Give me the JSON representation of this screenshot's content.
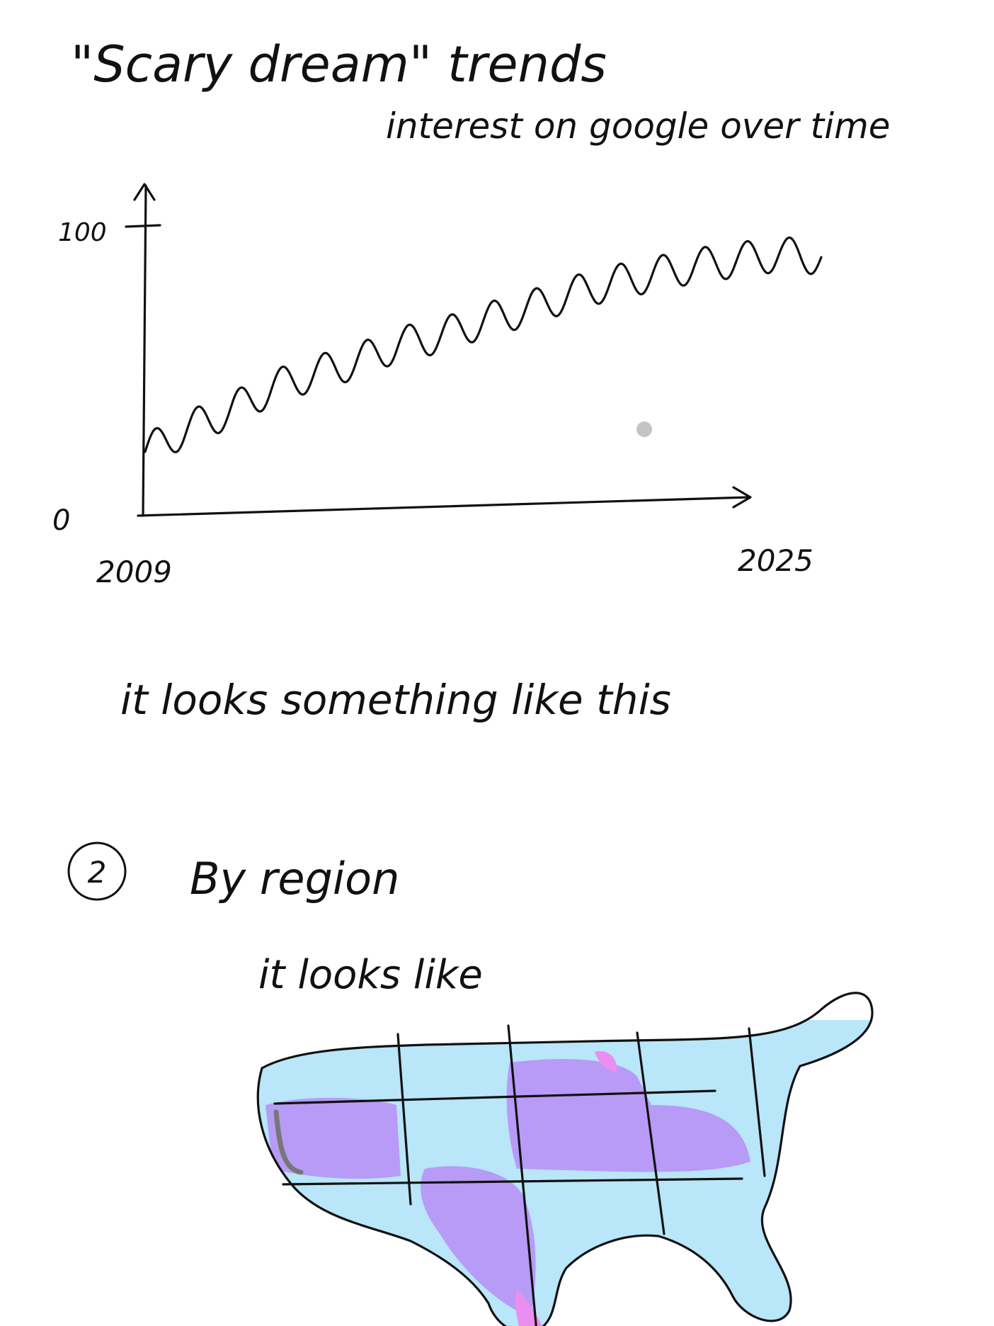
{
  "chart_data": {
    "type": "line",
    "title": "\"Scary dream\" trends",
    "subtitle": "interest on google over time",
    "x_range": [
      2009,
      2025
    ],
    "ylim": [
      0,
      100
    ],
    "x_ticks": [
      "2009",
      "2025"
    ],
    "y_ticks": [
      "0",
      "100"
    ],
    "grid": false,
    "legend": "none",
    "series": [
      {
        "x": [
          2009.0,
          2010.0,
          2011.0,
          2012.0,
          2013.0,
          2014.0,
          2015.0,
          2016.0,
          2017.0,
          2018.0,
          2019.0,
          2020.0,
          2021.0,
          2022.0,
          2023.0,
          2024.0,
          2025.0
        ],
        "y": [
          22,
          30,
          36,
          44,
          49,
          53,
          59,
          62,
          67,
          71,
          76,
          80,
          83,
          86,
          88,
          90,
          89
        ],
        "seasonal_amplitude": 6,
        "cycles_per_year": 1
      }
    ],
    "annotations": [
      "it looks something like this"
    ]
  },
  "section2": {
    "number": "2",
    "heading": "By region",
    "caption": "it looks like",
    "map_colors": {
      "low": "#b9e6f9",
      "high": "#b79bf7",
      "accent": "#ea8ff0"
    }
  }
}
